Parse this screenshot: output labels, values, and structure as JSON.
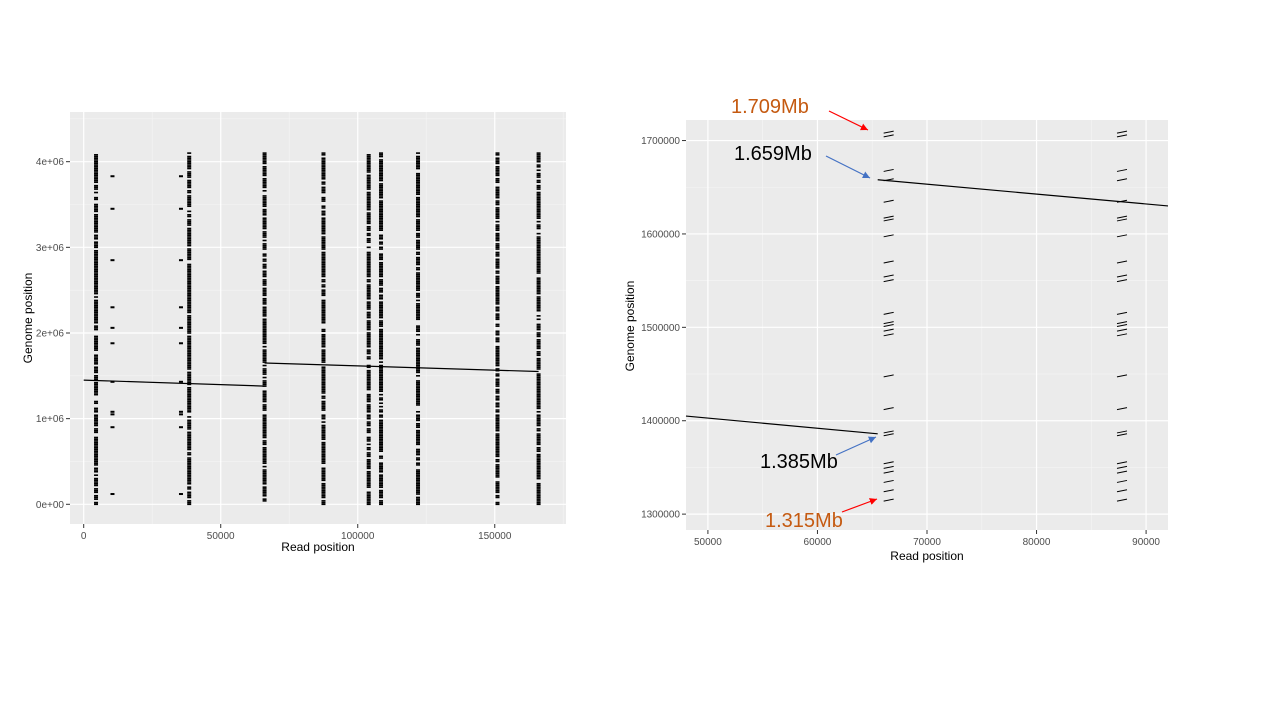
{
  "colors": {
    "panel_bg": "#ebebeb",
    "grid_major": "#ffffff",
    "grid_minor": "#f5f5f5",
    "ink": "#000000",
    "annot_orange": "#c55a11",
    "annot_black": "#000000",
    "arrow_red": "#ff0000",
    "arrow_blue": "#4472c4"
  },
  "chart_data": [
    {
      "type": "scatter",
      "xlabel": "Read position",
      "ylabel": "Genome position",
      "xlim": [
        -5000,
        176000
      ],
      "ylim": [
        -230000,
        4580000
      ],
      "xticks": [
        0,
        50000,
        100000,
        150000
      ],
      "xtick_labels": [
        "0",
        "50000",
        "100000",
        "150000"
      ],
      "yticks": [
        0,
        1000000,
        2000000,
        3000000,
        4000000
      ],
      "ytick_labels": [
        "0e+00",
        "1e+06",
        "2e+06",
        "3e+06",
        "4e+06"
      ],
      "grid": true,
      "segments": [
        {
          "x": [
            0,
            66000
          ],
          "y": [
            1450000,
            1380000
          ]
        },
        {
          "x": [
            66000,
            166000
          ],
          "y": [
            1650000,
            1550000
          ]
        }
      ],
      "repeat_columns": [
        4500,
        38500,
        66000,
        87500,
        104000,
        108500,
        122000,
        151000,
        166000
      ],
      "sparse_columns": [
        10500,
        35500
      ],
      "repeat_y_range": [
        0,
        4100000
      ]
    },
    {
      "type": "scatter",
      "xlabel": "Read position",
      "ylabel": "Genome position",
      "xlim": [
        48000,
        92000
      ],
      "ylim": [
        1283000,
        1722000
      ],
      "xticks": [
        50000,
        60000,
        70000,
        80000,
        90000
      ],
      "xtick_labels": [
        "50000",
        "60000",
        "70000",
        "80000",
        "90000"
      ],
      "yticks": [
        1300000,
        1400000,
        1500000,
        1600000,
        1700000
      ],
      "ytick_labels": [
        "1300000",
        "1400000",
        "1500000",
        "1600000",
        "1700000"
      ],
      "grid": true,
      "segments": [
        {
          "x": [
            48000,
            65500
          ],
          "y": [
            1405000,
            1386000
          ]
        },
        {
          "x": [
            65500,
            92000
          ],
          "y": [
            1658000,
            1630000
          ]
        }
      ],
      "repeat_columns": [
        66500,
        87800
      ],
      "repeat_y_values": [
        1315000,
        1325000,
        1335000,
        1345000,
        1350000,
        1355000,
        1385000,
        1388000,
        1413000,
        1448000,
        1492000,
        1497000,
        1502000,
        1505000,
        1515000,
        1550000,
        1555000,
        1570000,
        1598000,
        1615000,
        1618000,
        1635000,
        1658000,
        1668000,
        1705000,
        1709000
      ],
      "annotations": [
        {
          "text": "1.709Mb",
          "color": "orange",
          "target": [
            65500,
            1709000
          ]
        },
        {
          "text": "1.659Mb",
          "color": "black",
          "target": [
            65500,
            1659000
          ]
        },
        {
          "text": "1.385Mb",
          "color": "black",
          "target": [
            65500,
            1385000
          ]
        },
        {
          "text": "1.315Mb",
          "color": "orange",
          "target": [
            65500,
            1315000
          ]
        }
      ]
    }
  ]
}
